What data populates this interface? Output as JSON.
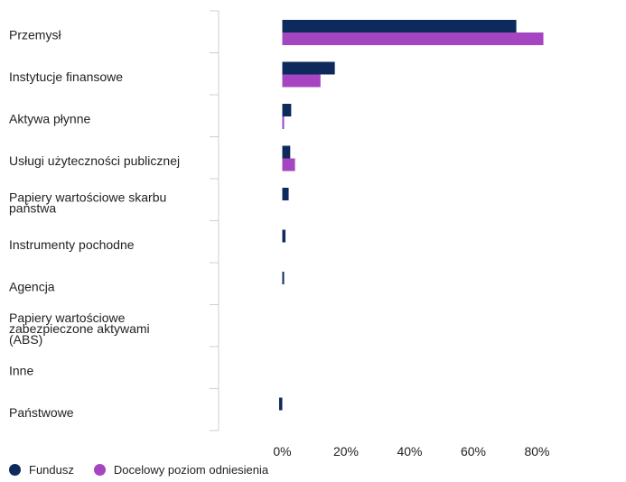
{
  "chart_data": {
    "type": "bar",
    "orientation": "horizontal",
    "categories": [
      [
        "Przemysł"
      ],
      [
        "Instytucje finansowe"
      ],
      [
        "Aktywa płynne"
      ],
      [
        "Usługi użyteczności publicznej"
      ],
      [
        "Papiery wartościowe skarbu",
        "państwa"
      ],
      [
        "Instrumenty pochodne"
      ],
      [
        "Agencja"
      ],
      [
        "Papiery wartościowe",
        "zabezpieczone aktywami",
        "(ABS)"
      ],
      [
        "Inne"
      ],
      [
        "Państwowe"
      ]
    ],
    "series": [
      {
        "name": "Fundusz",
        "color": "#0e2a5c",
        "values": [
          73.5,
          16.5,
          2.8,
          2.5,
          2.0,
          1.0,
          0.5,
          0,
          0,
          -1.0
        ]
      },
      {
        "name": "Docelowy poziom odniesienia",
        "color": "#a545c1",
        "values": [
          82.0,
          12.0,
          0.5,
          4.0,
          0,
          0,
          0,
          0,
          0,
          0
        ]
      }
    ],
    "xlim": [
      -20,
      100
    ],
    "xticks": [
      0,
      20,
      40,
      60,
      80
    ],
    "xtick_labels": [
      "0%",
      "20%",
      "40%",
      "60%",
      "80%"
    ],
    "grid": false,
    "legend_position": "bottom-left"
  }
}
